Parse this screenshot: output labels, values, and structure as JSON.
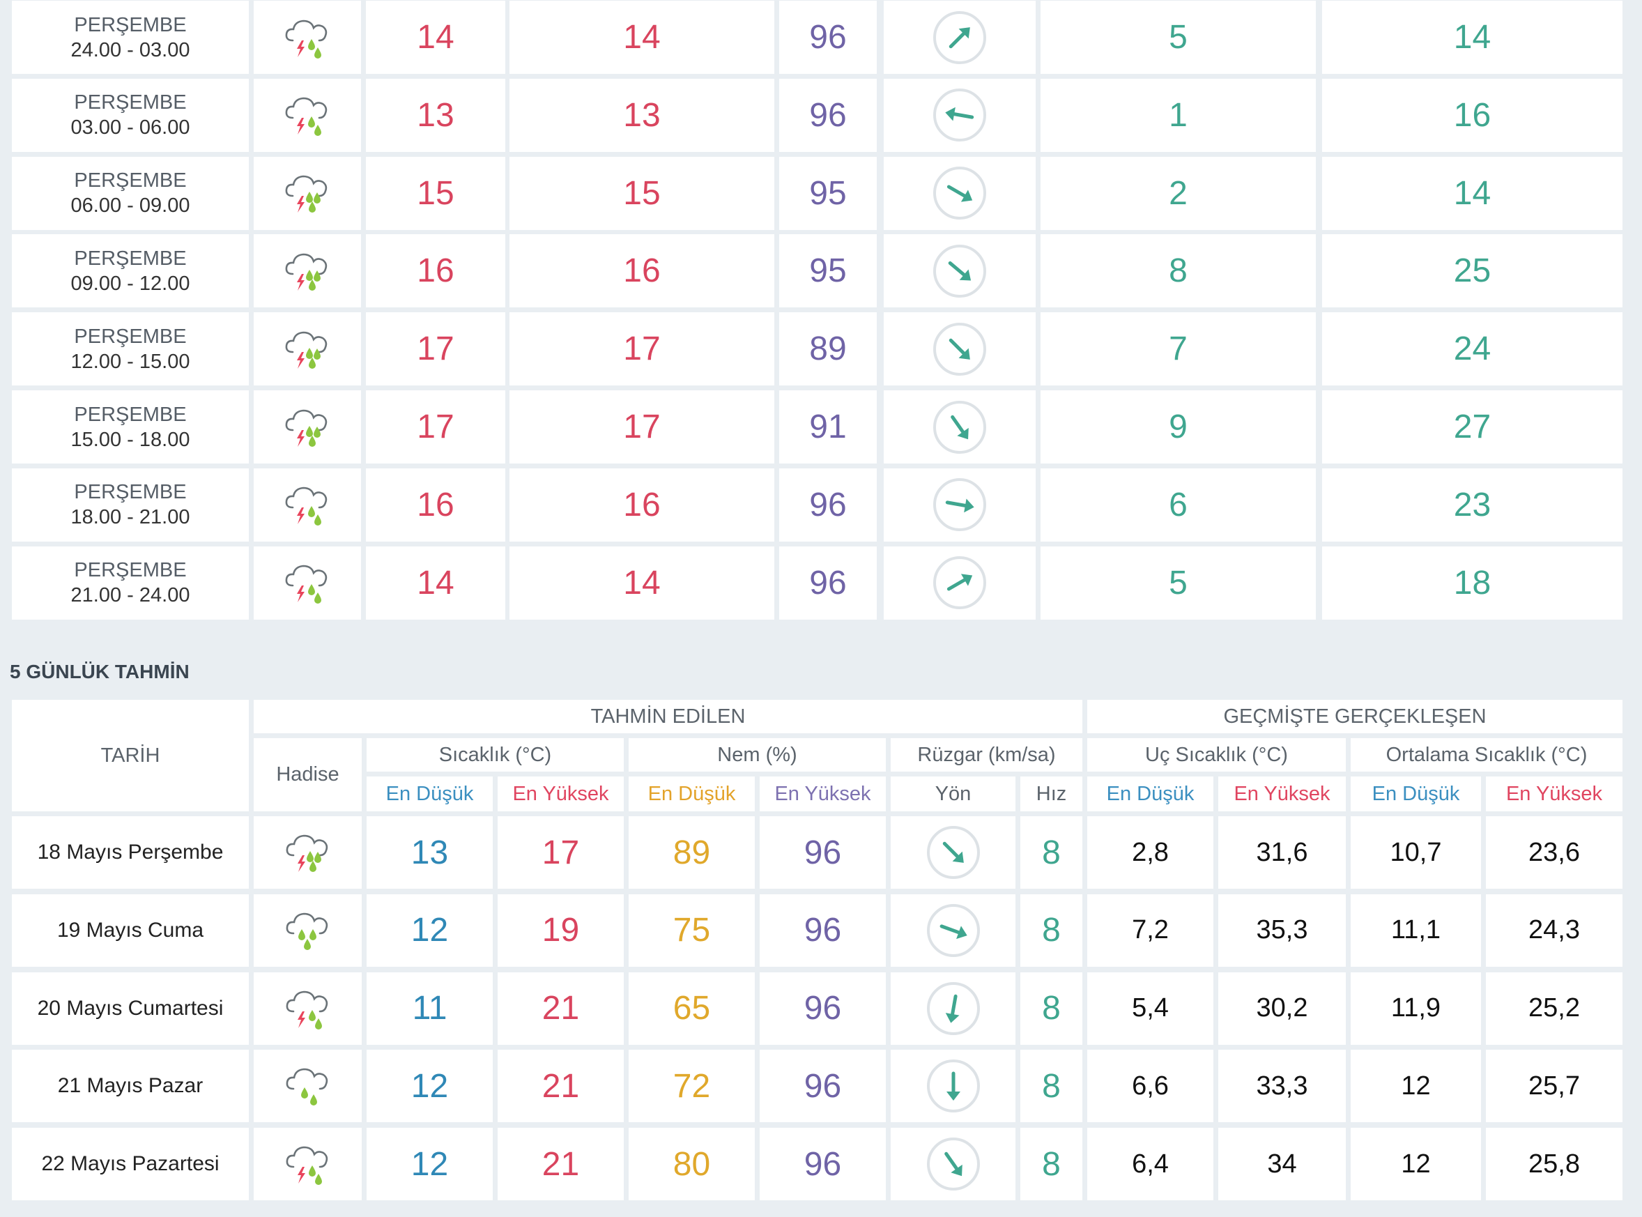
{
  "hourly": {
    "rows": [
      {
        "day": "PERŞEMBE",
        "period": "24.00 - 03.00",
        "icon": "storm-light-rain-icon",
        "t1": "14",
        "t2": "14",
        "humidity": "96",
        "wind_dir_deg": 45,
        "wind_speed": "5",
        "gust": "14"
      },
      {
        "day": "PERŞEMBE",
        "period": "03.00 - 06.00",
        "icon": "storm-light-rain-icon",
        "t1": "13",
        "t2": "13",
        "humidity": "96",
        "wind_dir_deg": 280,
        "wind_speed": "1",
        "gust": "16"
      },
      {
        "day": "PERŞEMBE",
        "period": "06.00 - 09.00",
        "icon": "storm-heavy-rain-icon",
        "t1": "15",
        "t2": "15",
        "humidity": "95",
        "wind_dir_deg": 120,
        "wind_speed": "2",
        "gust": "14"
      },
      {
        "day": "PERŞEMBE",
        "period": "09.00 - 12.00",
        "icon": "storm-heavy-rain-icon",
        "t1": "16",
        "t2": "16",
        "humidity": "95",
        "wind_dir_deg": 130,
        "wind_speed": "8",
        "gust": "25"
      },
      {
        "day": "PERŞEMBE",
        "period": "12.00 - 15.00",
        "icon": "storm-heavy-rain-icon",
        "t1": "17",
        "t2": "17",
        "humidity": "89",
        "wind_dir_deg": 135,
        "wind_speed": "7",
        "gust": "24"
      },
      {
        "day": "PERŞEMBE",
        "period": "15.00 - 18.00",
        "icon": "storm-heavy-rain-icon",
        "t1": "17",
        "t2": "17",
        "humidity": "91",
        "wind_dir_deg": 145,
        "wind_speed": "9",
        "gust": "27"
      },
      {
        "day": "PERŞEMBE",
        "period": "18.00 - 21.00",
        "icon": "storm-light-rain-icon",
        "t1": "16",
        "t2": "16",
        "humidity": "96",
        "wind_dir_deg": 100,
        "wind_speed": "6",
        "gust": "23"
      },
      {
        "day": "PERŞEMBE",
        "period": "21.00 - 24.00",
        "icon": "storm-light-rain-icon",
        "t1": "14",
        "t2": "14",
        "humidity": "96",
        "wind_dir_deg": 60,
        "wind_speed": "5",
        "gust": "18"
      }
    ]
  },
  "five_day": {
    "title": "5 GÜNLÜK TAHMİN",
    "headers": {
      "tarih": "TARİH",
      "tahmin_edilen": "TAHMİN EDİLEN",
      "gecmiste": "GEÇMİŞTE GERÇEKLEŞEN",
      "hadise": "Hadise",
      "sicaklik": "Sıcaklık (°C)",
      "nem": "Nem (%)",
      "ruzgar": "Rüzgar (km/sa)",
      "uc_sicaklik": "Uç Sıcaklık (°C)",
      "ortalama_sicaklik": "Ortalama Sıcaklık (°C)",
      "en_dusuk": "En Düşük",
      "en_yuksek": "En Yüksek",
      "yon": "Yön",
      "hiz": "Hız"
    },
    "rows": [
      {
        "date": "18 Mayıs Perşembe",
        "icon": "storm-heavy-rain-icon",
        "tmin": "13",
        "tmax": "17",
        "hmin": "89",
        "hmax": "96",
        "wind_dir_deg": 135,
        "wind_speed": "8",
        "uc_min": "2,8",
        "uc_max": "31,6",
        "ort_min": "10,7",
        "ort_max": "23,6"
      },
      {
        "date": "19 Mayıs Cuma",
        "icon": "heavy-rain-icon",
        "tmin": "12",
        "tmax": "19",
        "hmin": "75",
        "hmax": "96",
        "wind_dir_deg": 110,
        "wind_speed": "8",
        "uc_min": "7,2",
        "uc_max": "35,3",
        "ort_min": "11,1",
        "ort_max": "24,3"
      },
      {
        "date": "20 Mayıs Cumartesi",
        "icon": "storm-light-rain-icon",
        "tmin": "11",
        "tmax": "21",
        "hmin": "65",
        "hmax": "96",
        "wind_dir_deg": 190,
        "wind_speed": "8",
        "uc_min": "5,4",
        "uc_max": "30,2",
        "ort_min": "11,9",
        "ort_max": "25,2"
      },
      {
        "date": "21 Mayıs Pazar",
        "icon": "light-rain-icon",
        "tmin": "12",
        "tmax": "21",
        "hmin": "72",
        "hmax": "96",
        "wind_dir_deg": 180,
        "wind_speed": "8",
        "uc_min": "6,6",
        "uc_max": "33,3",
        "ort_min": "12",
        "ort_max": "25,7"
      },
      {
        "date": "22 Mayıs Pazartesi",
        "icon": "storm-light-rain-icon",
        "tmin": "12",
        "tmax": "21",
        "hmin": "80",
        "hmax": "96",
        "wind_dir_deg": 145,
        "wind_speed": "8",
        "uc_min": "6,4",
        "uc_max": "34",
        "ort_min": "12",
        "ort_max": "25,8"
      }
    ]
  },
  "colors": {
    "red": "#d9445e",
    "purple": "#6f63a6",
    "teal": "#3fa68f",
    "blue": "#2f88b6",
    "orange": "#e0a82b",
    "icon_green": "#8cc63f",
    "bolt_red": "#e8455c"
  }
}
